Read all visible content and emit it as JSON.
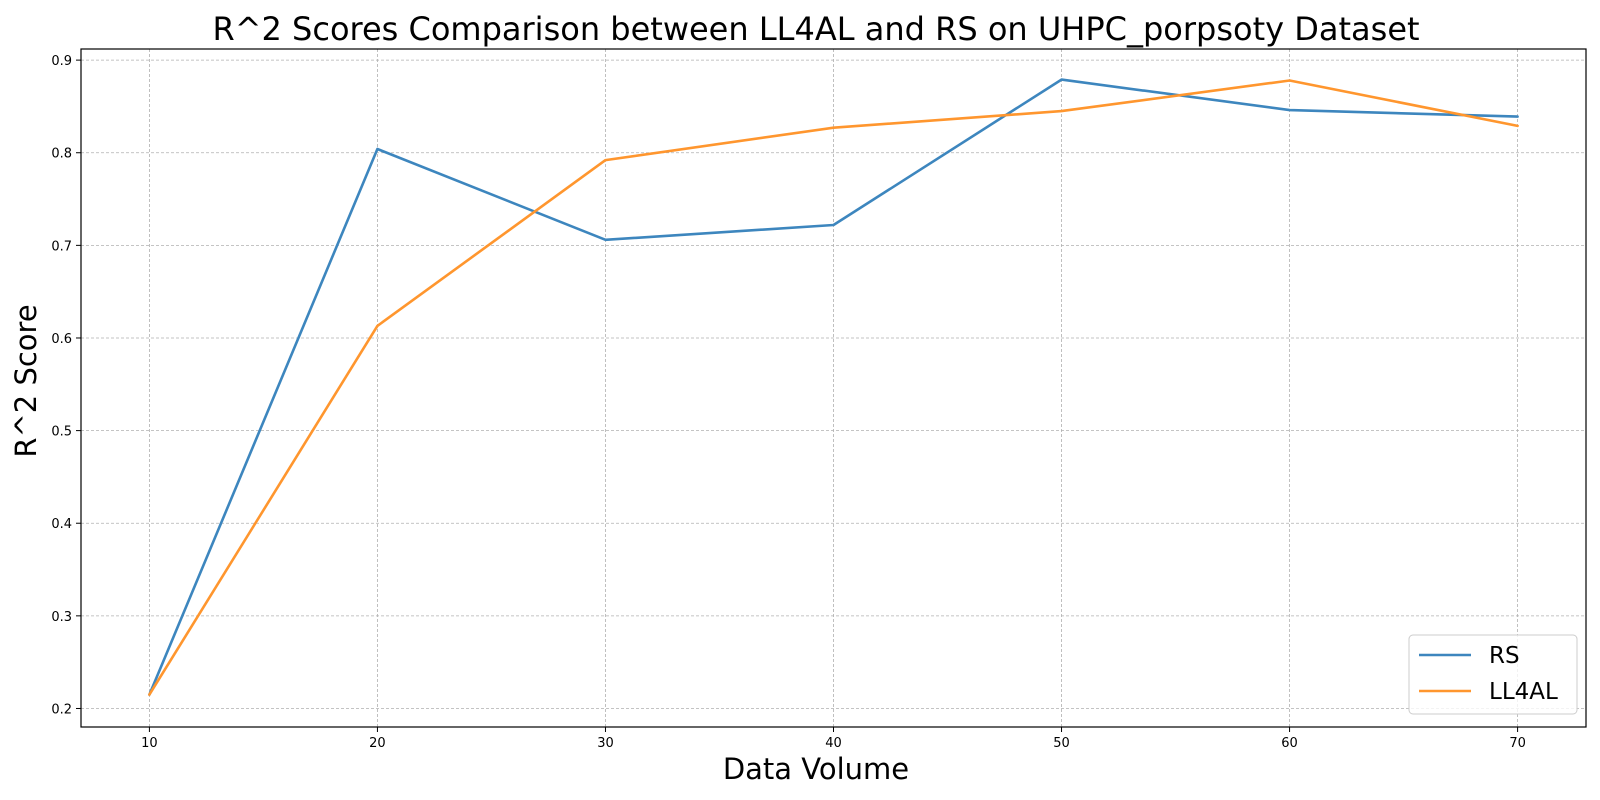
{
  "chart_data": {
    "type": "line",
    "title": "R^2 Scores Comparison between LL4AL and RS on UHPC_porpsoty Dataset",
    "xlabel": "Data Volume",
    "ylabel": "R^2 Score",
    "x": [
      10,
      20,
      30,
      40,
      50,
      60,
      70
    ],
    "xticks": [
      "10",
      "20",
      "30",
      "40",
      "50",
      "60",
      "70"
    ],
    "yticks": [
      "0.2",
      "0.3",
      "0.4",
      "0.5",
      "0.6",
      "0.7",
      "0.8",
      "0.9"
    ],
    "xlim": [
      7,
      73
    ],
    "ylim": [
      0.18,
      0.912
    ],
    "grid": true,
    "legend_position": "lower-right",
    "series": [
      {
        "name": "RS",
        "color": "#3d86be",
        "values": [
          0.215,
          0.804,
          0.706,
          0.722,
          0.879,
          0.846,
          0.839
        ]
      },
      {
        "name": "LL4AL",
        "color": "#ff962e",
        "values": [
          0.215,
          0.613,
          0.792,
          0.827,
          0.845,
          0.878,
          0.829
        ]
      }
    ]
  }
}
